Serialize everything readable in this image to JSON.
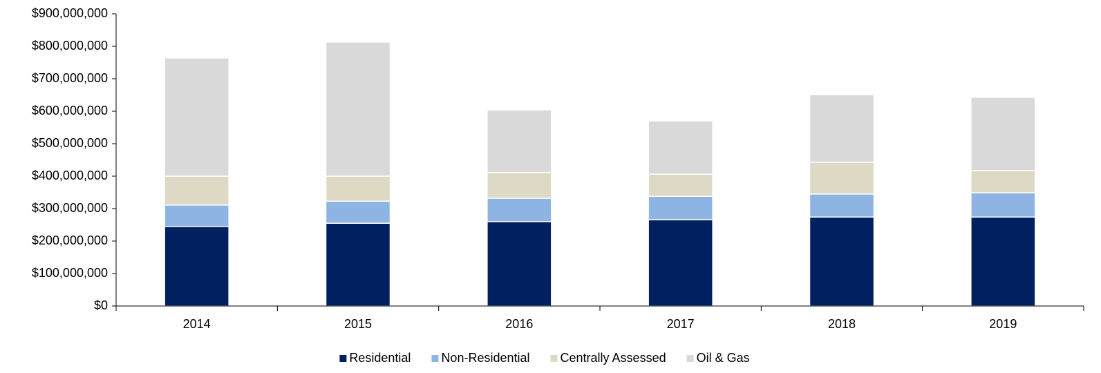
{
  "chart_data": {
    "type": "stacked_bar",
    "categories": [
      "2014",
      "2015",
      "2016",
      "2017",
      "2018",
      "2019"
    ],
    "series": [
      {
        "name": "Residential",
        "color": "#002060",
        "values": [
          245000000,
          255000000,
          260000000,
          266000000,
          274000000,
          274000000
        ]
      },
      {
        "name": "Non-Residential",
        "color": "#8eb4e3",
        "values": [
          66000000,
          68000000,
          72000000,
          72000000,
          71000000,
          75000000
        ]
      },
      {
        "name": "Centrally Assessed",
        "color": "#ddd9c4",
        "values": [
          89000000,
          77000000,
          79000000,
          68000000,
          98000000,
          68000000
        ]
      },
      {
        "name": "Oil & Gas",
        "color": "#d9d9d9",
        "values": [
          364000000,
          413000000,
          193000000,
          164000000,
          208000000,
          226000000
        ]
      }
    ],
    "ylim": [
      0,
      900000000
    ],
    "yticks": [
      {
        "value": 0,
        "label": "$0"
      },
      {
        "value": 100000000,
        "label": "$100,000,000"
      },
      {
        "value": 200000000,
        "label": "$200,000,000"
      },
      {
        "value": 300000000,
        "label": "$300,000,000"
      },
      {
        "value": 400000000,
        "label": "$400,000,000"
      },
      {
        "value": 500000000,
        "label": "$500,000,000"
      },
      {
        "value": 600000000,
        "label": "$600,000,000"
      },
      {
        "value": 700000000,
        "label": "$700,000,000"
      },
      {
        "value": 800000000,
        "label": "$800,000,000"
      },
      {
        "value": 900000000,
        "label": "$900,000,000"
      }
    ],
    "legend": "bottom"
  }
}
